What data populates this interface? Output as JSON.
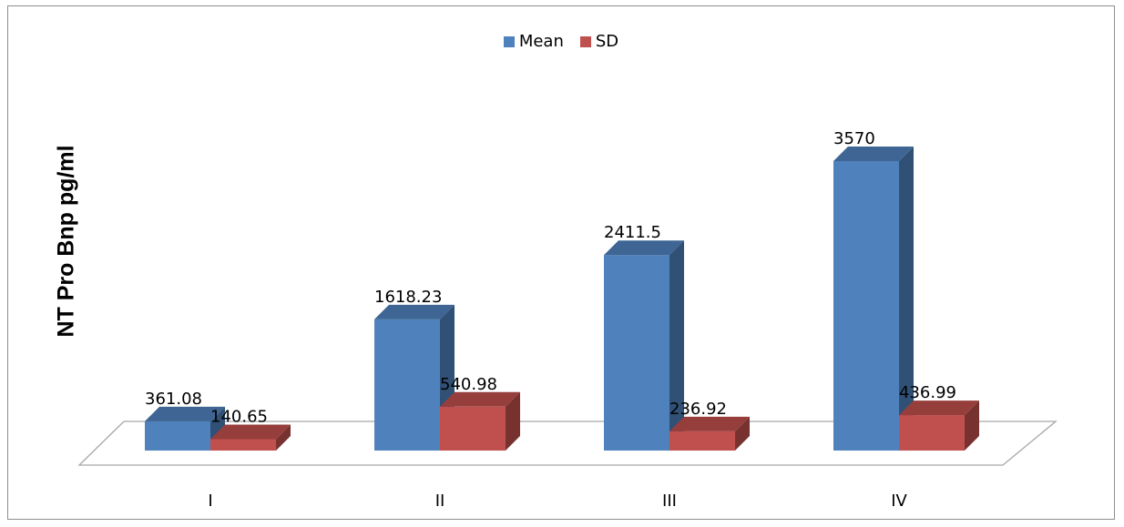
{
  "chart_data": {
    "type": "bar",
    "categories": [
      "I",
      "II",
      "III",
      "IV"
    ],
    "series": [
      {
        "name": "Mean",
        "values": [
          361.08,
          1618.23,
          2411.5,
          3570
        ],
        "color": "#4f81bd"
      },
      {
        "name": "SD",
        "values": [
          140.65,
          540.98,
          236.92,
          436.99
        ],
        "color": "#c0504d"
      }
    ],
    "title": "",
    "xlabel": "",
    "ylabel": "NT Pro Bnp pg/ml",
    "ylim": [
      0,
      4000
    ],
    "grid": false,
    "legend": "top-center",
    "style": "3d-clustered-column"
  }
}
